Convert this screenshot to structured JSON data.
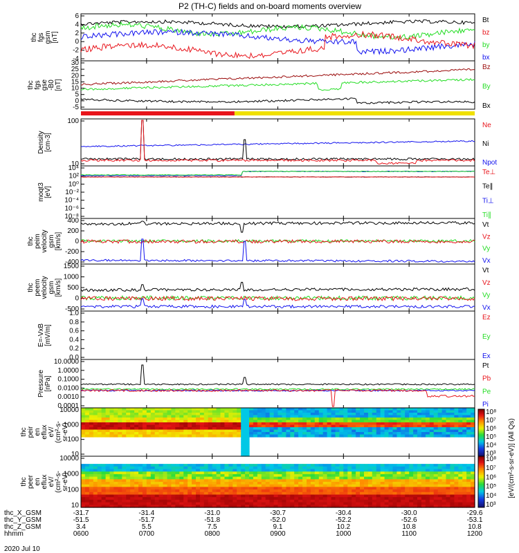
{
  "title": "P2 (TH-C) fields and on-board moments overview",
  "date": "2020 Jul 10",
  "colors": {
    "black": "#000000",
    "red": "#e8141b",
    "green": "#22dd22",
    "blue": "#1010ee",
    "darkred": "#9a0a0a",
    "yellow": "#f0e000"
  },
  "chart_data": [
    {
      "id": "fgs",
      "type": "line",
      "ylabel": [
        "thc",
        "fgs",
        "gsm",
        "[nT]"
      ],
      "yticks": [
        "6",
        "4",
        "2",
        "0",
        "-2",
        "-4"
      ],
      "ylim": [
        -5,
        6.5
      ],
      "legend": [
        {
          "name": "Bt",
          "color": "black"
        },
        {
          "name": "bz",
          "color": "red"
        },
        {
          "name": "by",
          "color": "green"
        },
        {
          "name": "bx",
          "color": "blue"
        }
      ]
    },
    {
      "id": "fgs_gse",
      "type": "line",
      "ylabel": [
        "thc",
        "fgs",
        "gse",
        "-B0",
        "[nT]"
      ],
      "yticks": [
        "30",
        "25",
        "20",
        "15",
        "10",
        "5",
        "0",
        "-5"
      ],
      "ylim": [
        -8,
        31
      ],
      "legend": [
        {
          "name": "Bz",
          "color": "darkred"
        },
        {
          "name": "By",
          "color": "green"
        },
        {
          "name": "Bx",
          "color": "black"
        }
      ]
    },
    {
      "id": "density",
      "type": "line",
      "scale": "log",
      "ylabel": [
        "Density",
        "[cm-3]"
      ],
      "yticks": [
        "100",
        "10"
      ],
      "legend": [
        {
          "name": "Ne",
          "color": "red"
        },
        {
          "name": "Ni",
          "color": "black"
        },
        {
          "name": "Npot",
          "color": "blue"
        }
      ]
    },
    {
      "id": "temp",
      "type": "line",
      "scale": "log",
      "ylabel": [
        "moqt3",
        "[eV]"
      ],
      "yticks": [
        "10⁴",
        "10²",
        "10⁰",
        "10⁻²",
        "10⁻⁴",
        "10⁻⁶",
        "10⁻⁸"
      ],
      "legend": [
        {
          "name": "Te⊥",
          "color": "red"
        },
        {
          "name": "Te∥",
          "color": "black"
        },
        {
          "name": "Ti⊥",
          "color": "blue"
        },
        {
          "name": "Ti∥",
          "color": "green"
        }
      ]
    },
    {
      "id": "peim",
      "type": "line",
      "ylabel": [
        "thc",
        "peim",
        "velocity",
        "gsm",
        "[km/s]"
      ],
      "yticks": [
        "400",
        "200",
        "0",
        "-200",
        "-400"
      ],
      "ylim": [
        -420,
        420
      ],
      "legend": [
        {
          "name": "Vt",
          "color": "black"
        },
        {
          "name": "Vz",
          "color": "red"
        },
        {
          "name": "Vy",
          "color": "green"
        },
        {
          "name": "Vx",
          "color": "blue"
        }
      ]
    },
    {
      "id": "peem",
      "type": "line",
      "ylabel": [
        "thc",
        "peem",
        "velocity",
        "gsm",
        "[km/s]"
      ],
      "yticks": [
        "1500",
        "1000",
        "500",
        "0",
        "-500"
      ],
      "ylim": [
        -560,
        1500
      ],
      "legend": [
        {
          "name": "Vt",
          "color": "black"
        },
        {
          "name": "Vz",
          "color": "red"
        },
        {
          "name": "Vy",
          "color": "green"
        },
        {
          "name": "Vx",
          "color": "blue"
        }
      ]
    },
    {
      "id": "efield",
      "type": "line",
      "ylabel": [
        "E=-VxB",
        "[mV/m]"
      ],
      "yticks": [
        "1.0",
        "0.8",
        "0.6",
        "0.4",
        "0.2",
        "0.0"
      ],
      "ylim": [
        0,
        1
      ],
      "legend": [
        {
          "name": "Ez",
          "color": "red"
        },
        {
          "name": "Ey",
          "color": "green"
        },
        {
          "name": "Ex",
          "color": "blue"
        }
      ]
    },
    {
      "id": "pressure",
      "type": "line",
      "scale": "log",
      "ylabel": [
        "Pressure",
        "[nPa]"
      ],
      "yticks": [
        "10.0000",
        "1.0000",
        "0.1000",
        "0.0100",
        "0.0010",
        "0.0001"
      ],
      "legend": [
        {
          "name": "Pt",
          "color": "black"
        },
        {
          "name": "Pb",
          "color": "red"
        },
        {
          "name": "Pe",
          "color": "green"
        },
        {
          "name": "Pi",
          "color": "blue"
        }
      ]
    },
    {
      "id": "peir",
      "type": "heatmap",
      "ylabel": [
        "thc",
        "peir",
        "en",
        "eflux",
        "eV/",
        "(cm²-s-",
        "sr-eV)"
      ],
      "yticks": [
        "10000",
        "1000",
        "100",
        "10"
      ]
    },
    {
      "id": "peer",
      "type": "heatmap",
      "ylabel": [
        "thc",
        "peer",
        "en",
        "eflux",
        "eV/",
        "(cm²-s-",
        "sr-eV)"
      ],
      "yticks": [
        "10000",
        "1000",
        "100",
        "10"
      ]
    }
  ],
  "colorbar": {
    "label": "[eV/(cm²-s-sr-eV)] (All Qs)",
    "ticks": [
      "10⁸",
      "10⁷",
      "10⁶",
      "10⁵",
      "10⁴",
      "10³",
      "10⁸",
      "10⁷",
      "10⁶",
      "10⁵",
      "10⁴",
      "10³"
    ]
  },
  "xaxis": {
    "rows": [
      {
        "label": "thc_X_GSM",
        "values": [
          "-31.7",
          "-31.4",
          "-31.0",
          "-30.7",
          "-30.4",
          "-30.0",
          "-29.6"
        ]
      },
      {
        "label": "thc_Y_GSM",
        "values": [
          "-51.5",
          "-51.7",
          "-51.8",
          "-52.0",
          "-52.2",
          "-52.6",
          "-53.1"
        ]
      },
      {
        "label": "thc_Z_GSM",
        "values": [
          "3.4",
          "5.5",
          "7.5",
          "9.1",
          "10.2",
          "10.8",
          "10.8"
        ]
      },
      {
        "label": "hhmm",
        "values": [
          "0600",
          "0700",
          "0800",
          "0900",
          "1000",
          "1100",
          "1200"
        ]
      }
    ]
  }
}
